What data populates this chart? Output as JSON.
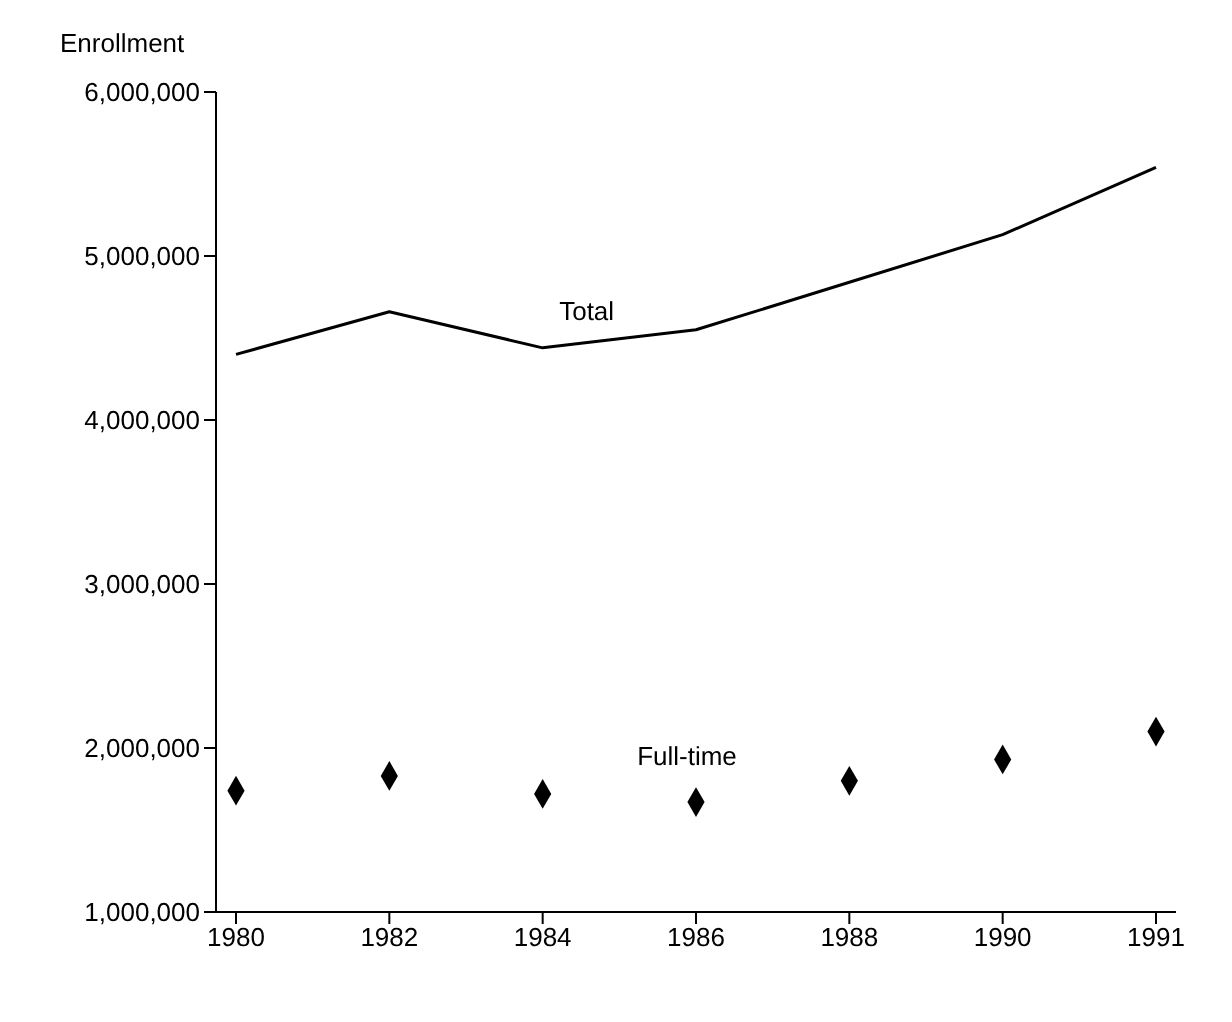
{
  "chart_data": {
    "type": "line",
    "ylabel": "Enrollment",
    "categories": [
      "1980",
      "1982",
      "1984",
      "1986",
      "1988",
      "1990",
      "1991"
    ],
    "series": [
      {
        "name": "Total",
        "color": "#000000",
        "marker": "none",
        "values": [
          4400000,
          4660000,
          4440000,
          4550000,
          4840000,
          5130000,
          5540000
        ]
      },
      {
        "name": "Full-time",
        "type": "scatter",
        "color": "#000000",
        "marker": "diamond",
        "values": [
          1740000,
          1830000,
          1720000,
          1670000,
          1800000,
          1930000,
          2100000
        ]
      }
    ],
    "ylim": [
      1000000,
      6000000
    ],
    "yticks": [
      {
        "value": 1000000,
        "label": "1,000,000"
      },
      {
        "value": 2000000,
        "label": "2,000,000"
      },
      {
        "value": 3000000,
        "label": "3,000,000"
      },
      {
        "value": 4000000,
        "label": "4,000,000"
      },
      {
        "value": 5000000,
        "label": "5,000,000"
      },
      {
        "value": 6000000,
        "label": "6,000,000"
      }
    ],
    "grid": false,
    "legend": false
  }
}
